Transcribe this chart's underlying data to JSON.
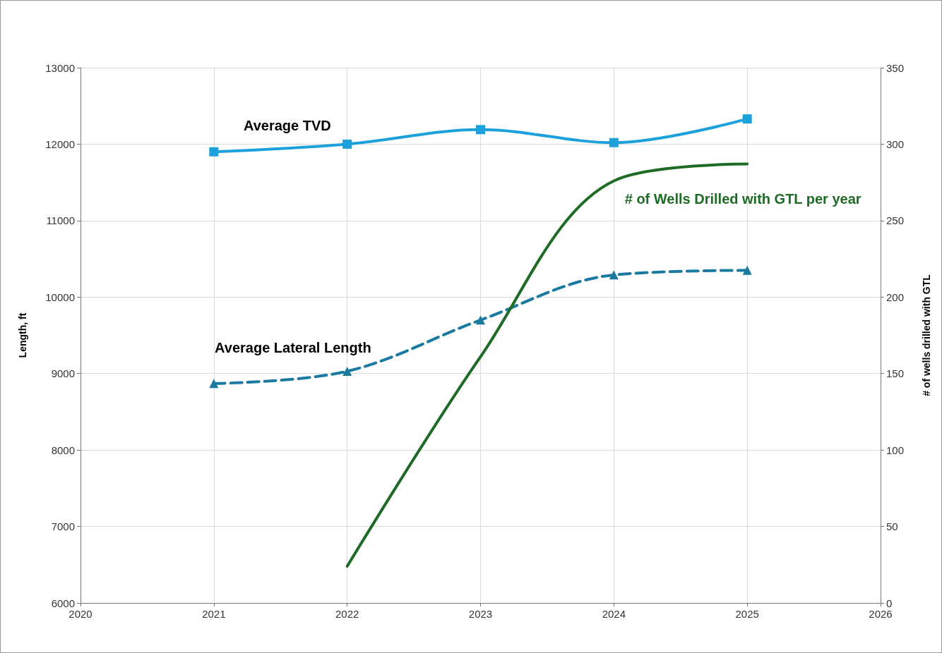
{
  "chart_data": {
    "type": "line",
    "ylabel": "Length, ft",
    "y2label": "# of wells drilled with GTL",
    "x": [
      2021,
      2022,
      2023,
      2024,
      2025
    ],
    "xlim": [
      2020,
      2026
    ],
    "xticks": [
      2020,
      2021,
      2022,
      2023,
      2024,
      2025,
      2026
    ],
    "ylim": [
      6000,
      13000
    ],
    "yticks": [
      6000,
      7000,
      8000,
      9000,
      10000,
      11000,
      12000,
      13000
    ],
    "y2lim": [
      0,
      350
    ],
    "y2ticks": [
      0,
      50,
      100,
      150,
      200,
      250,
      300,
      350
    ],
    "grid": true,
    "legend": false,
    "series": [
      {
        "name": "Average TVD",
        "color": "#1da1dc",
        "marker": "square",
        "line_style": "solid",
        "values": [
          11900,
          12000,
          12190,
          12020,
          12330
        ]
      },
      {
        "name": "Average Lateral Length",
        "color": "#1a7aa0",
        "marker": "triangle",
        "line_style": "dashed",
        "values": [
          8870,
          9030,
          9700,
          10290,
          10350
        ]
      },
      {
        "name": "# of Wells Drilled with GTL per year",
        "color": "#1e6b25",
        "marker": "none",
        "line_style": "solid",
        "axis": "y2",
        "values": [
          null,
          24,
          161,
          276,
          287
        ]
      }
    ]
  }
}
